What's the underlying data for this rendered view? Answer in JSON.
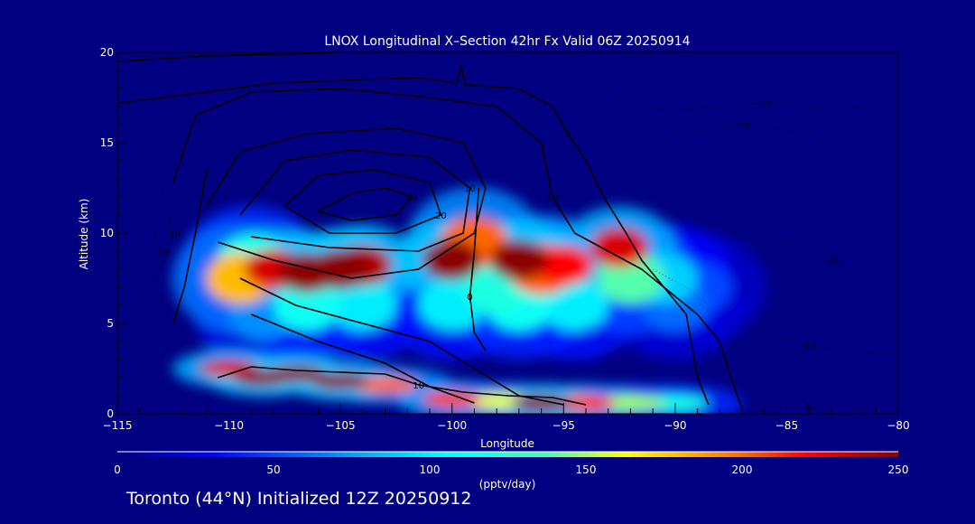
{
  "colors": {
    "background": "#000080",
    "contour": "#000000",
    "axis": "#000000",
    "text": "#ffffff"
  },
  "chart_data": {
    "type": "heatmap",
    "title": "LNOX Longitudinal X–Section 42hr  Fx Valid 06Z 20250914",
    "xlabel": "Longitude",
    "ylabel": "Altitude (km)",
    "xlim": [
      -115,
      -80
    ],
    "ylim": [
      0,
      20
    ],
    "x_ticks": [
      -115,
      -110,
      -105,
      -100,
      -95,
      -90,
      -85,
      -80
    ],
    "x_tick_labels": [
      "−115",
      "−110",
      "−105",
      "−100",
      "−95",
      "−90",
      "−85",
      "−80"
    ],
    "y_ticks": [
      0,
      5,
      10,
      15,
      20
    ],
    "y_tick_labels": [
      "0",
      "5",
      "10",
      "15",
      "20"
    ],
    "colorbar": {
      "min": 0,
      "max": 250,
      "ticks": [
        0,
        50,
        100,
        150,
        200,
        250
      ],
      "tick_labels": [
        "0",
        "50",
        "100",
        "150",
        "200",
        "250"
      ],
      "units": "(pptv/day)"
    },
    "cells": [
      {
        "lon": -109.5,
        "alt": 7.5,
        "value": 180
      },
      {
        "lon": -109.0,
        "alt": 8.5,
        "value": 120
      },
      {
        "lon": -108.0,
        "alt": 8.0,
        "value": 230
      },
      {
        "lon": -106.5,
        "alt": 7.8,
        "value": 250
      },
      {
        "lon": -105.0,
        "alt": 8.0,
        "value": 250
      },
      {
        "lon": -104.0,
        "alt": 8.2,
        "value": 240
      },
      {
        "lon": -106.5,
        "alt": 6.0,
        "value": 110
      },
      {
        "lon": -104.0,
        "alt": 6.0,
        "value": 100
      },
      {
        "lon": -108.5,
        "alt": 5.5,
        "value": 70
      },
      {
        "lon": -100.0,
        "alt": 8.5,
        "value": 250
      },
      {
        "lon": -99.0,
        "alt": 9.5,
        "value": 200
      },
      {
        "lon": -100.0,
        "alt": 6.0,
        "value": 100
      },
      {
        "lon": -98.0,
        "alt": 7.0,
        "value": 120
      },
      {
        "lon": -97.0,
        "alt": 8.5,
        "value": 250
      },
      {
        "lon": -96.0,
        "alt": 8.0,
        "value": 200
      },
      {
        "lon": -95.0,
        "alt": 8.2,
        "value": 220
      },
      {
        "lon": -97.0,
        "alt": 6.0,
        "value": 110
      },
      {
        "lon": -94.5,
        "alt": 6.0,
        "value": 100
      },
      {
        "lon": -92.5,
        "alt": 9.2,
        "value": 230
      },
      {
        "lon": -92.0,
        "alt": 7.5,
        "value": 140
      },
      {
        "lon": -90.5,
        "alt": 7.5,
        "value": 90
      },
      {
        "lon": -90.0,
        "alt": 6.0,
        "value": 60
      },
      {
        "lon": -89.0,
        "alt": 7.0,
        "value": 50
      },
      {
        "lon": -110.0,
        "alt": 2.5,
        "value": 230
      },
      {
        "lon": -108.5,
        "alt": 2.0,
        "value": 250
      },
      {
        "lon": -107.0,
        "alt": 2.2,
        "value": 250
      },
      {
        "lon": -105.0,
        "alt": 1.8,
        "value": 250
      },
      {
        "lon": -103.0,
        "alt": 1.6,
        "value": 200
      },
      {
        "lon": -100.0,
        "alt": 0.8,
        "value": 210
      },
      {
        "lon": -98.0,
        "alt": 0.7,
        "value": 160
      },
      {
        "lon": -96.0,
        "alt": 0.6,
        "value": 250
      },
      {
        "lon": -94.0,
        "alt": 0.6,
        "value": 210
      },
      {
        "lon": -92.0,
        "alt": 0.6,
        "value": 150
      },
      {
        "lon": -90.0,
        "alt": 0.6,
        "value": 120
      }
    ],
    "contours": [
      {
        "label": "20",
        "style": "solid",
        "points": [
          [
            -106,
            11.2
          ],
          [
            -104.5,
            12.2
          ],
          [
            -103,
            12.5
          ],
          [
            -101.8,
            12.0
          ],
          [
            -102.5,
            11.0
          ],
          [
            -104.5,
            10.7
          ],
          [
            -106,
            11.2
          ]
        ]
      },
      {
        "label": "20",
        "style": "solid",
        "points": [
          [
            -107.5,
            11.5
          ],
          [
            -106,
            13.2
          ],
          [
            -103.5,
            13.5
          ],
          [
            -101,
            12.8
          ],
          [
            -100.5,
            11.0
          ],
          [
            -102.5,
            10.0
          ],
          [
            -105.5,
            10.0
          ],
          [
            -107.5,
            11.5
          ]
        ]
      },
      {
        "label": "10",
        "style": "solid",
        "points": [
          [
            -109.5,
            11.0
          ],
          [
            -107.5,
            14.0
          ],
          [
            -104.5,
            14.6
          ],
          [
            -101,
            14.2
          ],
          [
            -99.2,
            12.5
          ],
          [
            -99.5,
            10.0
          ],
          [
            -101.5,
            9.0
          ],
          [
            -105.5,
            9.2
          ],
          [
            -109,
            9.8
          ]
        ]
      },
      {
        "label": "",
        "style": "solid",
        "points": [
          [
            -111,
            11.5
          ],
          [
            -109.5,
            14.5
          ],
          [
            -106.5,
            15.5
          ],
          [
            -102.5,
            15.8
          ],
          [
            -99.5,
            15.0
          ],
          [
            -98.5,
            12.5
          ],
          [
            -99.0,
            10.0
          ],
          [
            -101.5,
            8.0
          ],
          [
            -104.5,
            7.5
          ],
          [
            -108,
            8.5
          ],
          [
            -110.5,
            9.5
          ]
        ]
      },
      {
        "label": "10",
        "style": "solid",
        "points": [
          [
            -112.5,
            12.8
          ],
          [
            -111.5,
            16.5
          ],
          [
            -109,
            17.8
          ],
          [
            -105,
            18.0
          ],
          [
            -101,
            17.5
          ],
          [
            -98,
            17.0
          ],
          [
            -96,
            15.0
          ],
          [
            -95.5,
            12.0
          ],
          [
            -94.5,
            10.0
          ],
          [
            -93,
            9.0
          ],
          [
            -91.5,
            8.0
          ],
          [
            -90.5,
            7.0
          ],
          [
            -89.5,
            5.5
          ],
          [
            -89.0,
            2.0
          ],
          [
            -88.5,
            0.5
          ]
        ]
      },
      {
        "label": "0",
        "style": "solid",
        "points": [
          [
            -115,
            17.2
          ],
          [
            -111,
            17.8
          ],
          [
            -108,
            18.3
          ],
          [
            -104,
            18.5
          ],
          [
            -101.5,
            18.6
          ],
          [
            -99.8,
            18.3
          ],
          [
            -99.6,
            19.2
          ],
          [
            -99.4,
            18.2
          ],
          [
            -97,
            18.0
          ],
          [
            -95.5,
            17.0
          ],
          [
            -94.8,
            15.5
          ],
          [
            -94.0,
            14.0
          ],
          [
            -93.2,
            12.0
          ],
          [
            -92.2,
            10.0
          ],
          [
            -91.5,
            8.5
          ],
          [
            -90.5,
            7.0
          ],
          [
            -89.0,
            5.5
          ],
          [
            -88.0,
            4.0
          ],
          [
            -87.5,
            2.0
          ],
          [
            -87.0,
            0.3
          ]
        ]
      },
      {
        "label": "",
        "style": "solid",
        "points": [
          [
            -115,
            19.5
          ],
          [
            -111,
            19.8
          ],
          [
            -108,
            19.9
          ],
          [
            -105,
            20.0
          ]
        ]
      },
      {
        "label": "",
        "style": "solid",
        "points": [
          [
            -111,
            13.5
          ],
          [
            -111.5,
            10.0
          ],
          [
            -112,
            7.0
          ],
          [
            -112.5,
            5.0
          ]
        ]
      },
      {
        "label": "",
        "style": "solid",
        "points": [
          [
            -109.5,
            7.5
          ],
          [
            -107,
            6.0
          ],
          [
            -104,
            5.0
          ],
          [
            -101,
            4.0
          ],
          [
            -99,
            2.5
          ],
          [
            -97,
            1.0
          ],
          [
            -95,
            0.5
          ]
        ]
      },
      {
        "label": "",
        "style": "solid",
        "points": [
          [
            -109.0,
            5.5
          ],
          [
            -106,
            4.0
          ],
          [
            -103,
            2.8
          ],
          [
            -101,
            1.5
          ],
          [
            -99,
            0.6
          ]
        ]
      },
      {
        "label": "0",
        "style": "solid",
        "points": [
          [
            -98.8,
            12.5
          ],
          [
            -99.0,
            9.0
          ],
          [
            -99.2,
            6.5
          ],
          [
            -99.0,
            4.5
          ],
          [
            -98.5,
            3.5
          ]
        ]
      },
      {
        "label": "10",
        "style": "solid",
        "points": [
          [
            -110.5,
            2.0
          ],
          [
            -109.0,
            2.6
          ],
          [
            -107,
            2.4
          ],
          [
            -105,
            2.3
          ],
          [
            -103,
            2.2
          ],
          [
            -101.5,
            1.6
          ],
          [
            -99.5,
            1.2
          ],
          [
            -97.5,
            1.0
          ],
          [
            -95.5,
            0.9
          ],
          [
            -94,
            0.5
          ]
        ]
      },
      {
        "label": "-10",
        "style": "dashed",
        "points": [
          [
            -114,
            14.5
          ],
          [
            -113,
            12.5
          ],
          [
            -112.5,
            10.0
          ],
          [
            -113,
            8.0
          ],
          [
            -114,
            6.0
          ]
        ]
      },
      {
        "label": "-20",
        "style": "dashed",
        "points": [
          [
            -114.5,
            11.0
          ],
          [
            -113.5,
            10.5
          ],
          [
            -113,
            9.0
          ],
          [
            -113.5,
            7.5
          ]
        ]
      },
      {
        "label": "-20",
        "style": "dashed",
        "points": [
          [
            -92,
            14.0
          ],
          [
            -90,
            15.5
          ],
          [
            -87,
            16.0
          ],
          [
            -84,
            15.5
          ],
          [
            -82,
            14.0
          ]
        ]
      },
      {
        "label": "-20",
        "style": "dashed",
        "points": [
          [
            -87.5,
            10.0
          ],
          [
            -85,
            9.5
          ],
          [
            -83,
            8.5
          ],
          [
            -81.5,
            7.5
          ],
          [
            -80,
            7.0
          ]
        ]
      },
      {
        "label": "-10",
        "style": "dashed",
        "points": [
          [
            -93,
            18.0
          ],
          [
            -92,
            17.0
          ],
          [
            -90,
            16.8
          ],
          [
            -86,
            17.2
          ],
          [
            -82,
            17.0
          ],
          [
            -80,
            16.5
          ]
        ]
      },
      {
        "label": "-10",
        "style": "dashed",
        "points": [
          [
            -88,
            6.0
          ],
          [
            -86,
            4.5
          ],
          [
            -84,
            3.8
          ],
          [
            -82,
            3.5
          ],
          [
            -80,
            3.2
          ]
        ]
      },
      {
        "label": "0",
        "style": "dashed",
        "points": [
          [
            -88.5,
            0.8
          ],
          [
            -86,
            0.6
          ],
          [
            -84,
            0.4
          ],
          [
            -82,
            0.3
          ],
          [
            -80,
            0.2
          ]
        ]
      },
      {
        "label": "",
        "style": "dashed",
        "points": [
          [
            -91,
            8.0
          ],
          [
            -89.5,
            7.0
          ],
          [
            -88.5,
            6.0
          ]
        ]
      }
    ]
  },
  "footer": {
    "text": "Toronto (44°N) Initialized 12Z 20250912"
  }
}
